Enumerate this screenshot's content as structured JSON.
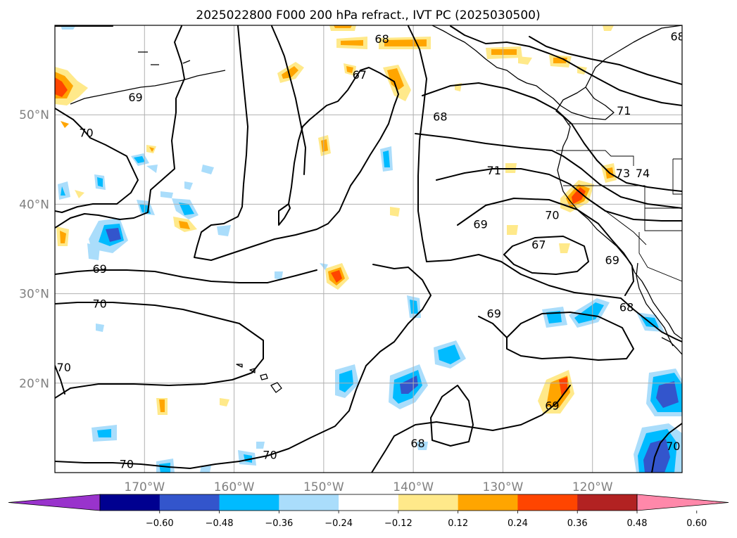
{
  "title": "2025022800 F000 200 hPa refract., IVT PC (2025030500)",
  "map": {
    "lon_range": [
      -180,
      -110
    ],
    "lat_range": [
      10,
      60
    ],
    "gridlines_lon": [
      -170,
      -160,
      -150,
      -140,
      -130,
      -120
    ],
    "gridlines_lat": [
      20,
      30,
      40,
      50
    ],
    "lon_labels": [
      "170°W",
      "160°W",
      "150°W",
      "140°W",
      "130°W",
      "120°W"
    ],
    "lat_labels": [
      "20°N",
      "30°N",
      "40°N",
      "50°N"
    ],
    "contour_labels": [
      {
        "text": "69",
        "lon": -171.0,
        "lat": 52.0
      },
      {
        "text": "70",
        "lon": -176.5,
        "lat": 48.0
      },
      {
        "text": "67",
        "lon": -146.0,
        "lat": 54.5
      },
      {
        "text": "68",
        "lon": -137.0,
        "lat": 49.8
      },
      {
        "text": "68",
        "lon": -143.5,
        "lat": 58.5
      },
      {
        "text": "68",
        "lon": -110.5,
        "lat": 58.8
      },
      {
        "text": "71",
        "lon": -131.0,
        "lat": 43.8
      },
      {
        "text": "71",
        "lon": -116.5,
        "lat": 50.5
      },
      {
        "text": "73",
        "lon": -116.6,
        "lat": 43.5
      },
      {
        "text": "74",
        "lon": -114.4,
        "lat": 43.5
      },
      {
        "text": "70",
        "lon": -124.5,
        "lat": 38.8
      },
      {
        "text": "69",
        "lon": -132.5,
        "lat": 37.8
      },
      {
        "text": "67",
        "lon": -126.0,
        "lat": 35.5
      },
      {
        "text": "69",
        "lon": -117.8,
        "lat": 33.8
      },
      {
        "text": "68",
        "lon": -116.2,
        "lat": 28.5
      },
      {
        "text": "69",
        "lon": -131.0,
        "lat": 27.8
      },
      {
        "text": "69",
        "lon": -175.0,
        "lat": 32.8
      },
      {
        "text": "70",
        "lon": -175.0,
        "lat": 28.9
      },
      {
        "text": "70",
        "lon": -179.0,
        "lat": 21.8
      },
      {
        "text": "70",
        "lon": -172.0,
        "lat": 11.0
      },
      {
        "text": "70",
        "lon": -156.0,
        "lat": 12.0
      },
      {
        "text": "68",
        "lon": -139.5,
        "lat": 13.3
      },
      {
        "text": "69",
        "lon": -124.5,
        "lat": 17.5
      },
      {
        "text": "70",
        "lon": -111.0,
        "lat": 13.0
      }
    ]
  },
  "colorbar": {
    "ticks": [
      "−0.60",
      "−0.48",
      "−0.36",
      "−0.24",
      "−0.12",
      "0.12",
      "0.24",
      "0.36",
      "0.48",
      "0.60"
    ],
    "colors": [
      "#9933cc",
      "#000090",
      "#3355cc",
      "#00bbff",
      "#aaddfb",
      "#ffffff",
      "#ffe98a",
      "#ffa500",
      "#ff4500",
      "#b22222",
      "#ff88aa"
    ]
  }
}
